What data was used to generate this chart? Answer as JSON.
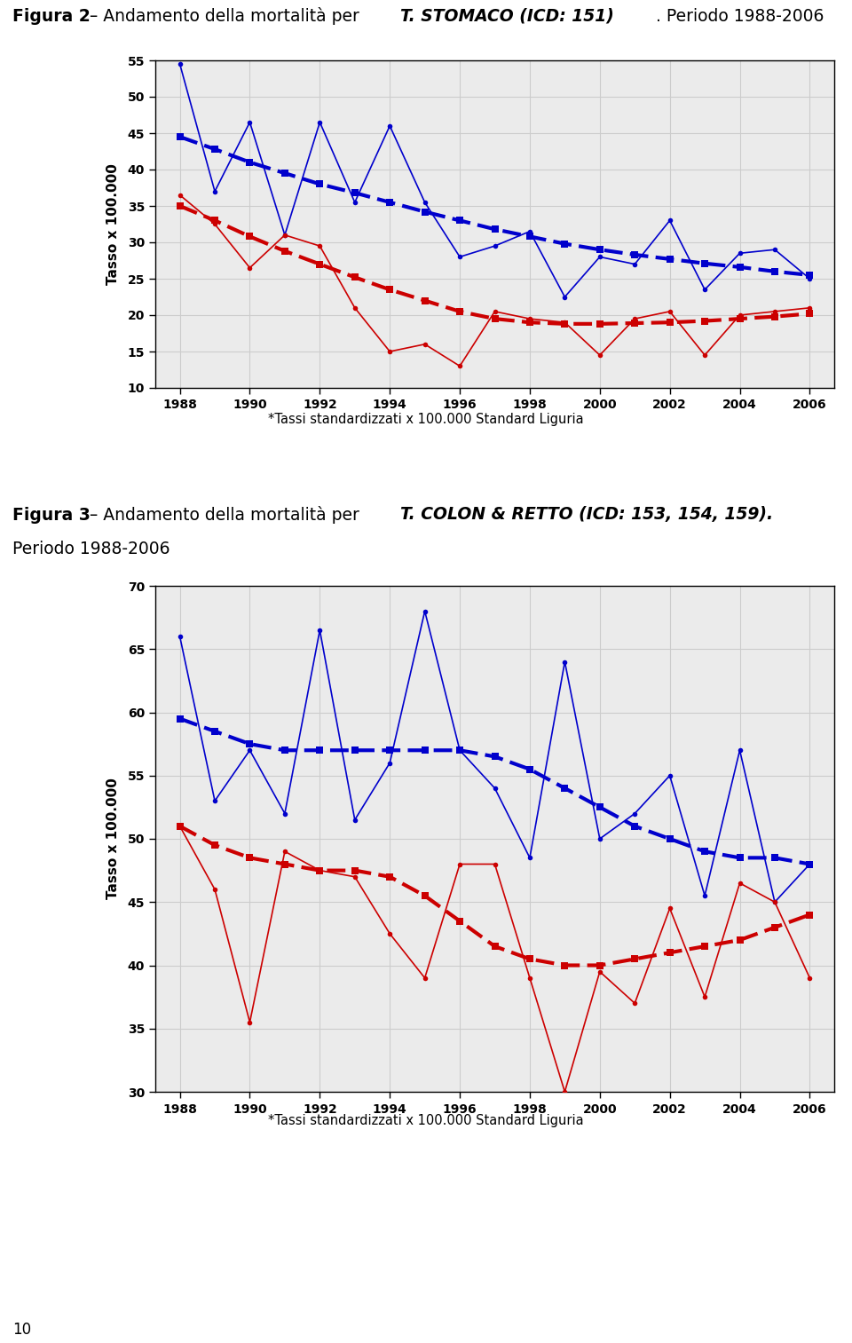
{
  "footnote": "*Tassi standardizzati x 100.000 Standard Liguria",
  "years": [
    1988,
    1989,
    1990,
    1991,
    1992,
    1993,
    1994,
    1995,
    1996,
    1997,
    1998,
    1999,
    2000,
    2001,
    2002,
    2003,
    2004,
    2005,
    2006
  ],
  "stomaco_blue_raw": [
    54.5,
    37.0,
    46.5,
    31.0,
    46.5,
    35.5,
    46.0,
    35.5,
    28.0,
    29.5,
    31.5,
    22.5,
    28.0,
    27.0,
    33.0,
    23.5,
    28.5,
    29.0,
    25.0
  ],
  "stomaco_red_raw": [
    36.5,
    32.5,
    26.5,
    31.0,
    29.5,
    21.0,
    15.0,
    16.0,
    13.0,
    20.5,
    19.5,
    19.0,
    14.5,
    19.5,
    20.5,
    14.5,
    20.0,
    20.5,
    21.0
  ],
  "stomaco_blue_trend": [
    44.5,
    42.8,
    41.0,
    39.5,
    38.0,
    36.8,
    35.5,
    34.2,
    33.0,
    31.8,
    30.8,
    29.8,
    29.0,
    28.3,
    27.7,
    27.1,
    26.6,
    26.0,
    25.5
  ],
  "stomaco_red_trend": [
    35.0,
    33.0,
    30.8,
    28.8,
    27.0,
    25.2,
    23.5,
    22.0,
    20.5,
    19.5,
    19.0,
    18.8,
    18.8,
    18.9,
    19.0,
    19.2,
    19.5,
    19.8,
    20.2
  ],
  "stomaco_ylim": [
    10,
    55
  ],
  "stomaco_yticks": [
    10,
    15,
    20,
    25,
    30,
    35,
    40,
    45,
    50,
    55
  ],
  "colon_blue_raw": [
    66.0,
    53.0,
    57.0,
    52.0,
    66.5,
    51.5,
    56.0,
    68.0,
    57.0,
    54.0,
    48.5,
    64.0,
    50.0,
    52.0,
    55.0,
    45.5,
    57.0,
    45.0,
    48.0
  ],
  "colon_red_raw": [
    51.0,
    46.0,
    35.5,
    49.0,
    47.5,
    47.0,
    42.5,
    39.0,
    48.0,
    48.0,
    39.0,
    30.0,
    39.5,
    37.0,
    44.5,
    37.5,
    46.5,
    45.0,
    39.0
  ],
  "colon_blue_trend": [
    59.5,
    58.5,
    57.5,
    57.0,
    57.0,
    57.0,
    57.0,
    57.0,
    57.0,
    56.5,
    55.5,
    54.0,
    52.5,
    51.0,
    50.0,
    49.0,
    48.5,
    48.5,
    48.0
  ],
  "colon_red_trend": [
    51.0,
    49.5,
    48.5,
    48.0,
    47.5,
    47.5,
    47.0,
    45.5,
    43.5,
    41.5,
    40.5,
    40.0,
    40.0,
    40.5,
    41.0,
    41.5,
    42.0,
    43.0,
    44.0
  ],
  "colon_ylim": [
    30,
    70
  ],
  "colon_yticks": [
    30,
    35,
    40,
    45,
    50,
    55,
    60,
    65,
    70
  ],
  "blue_color": "#0000cc",
  "red_color": "#cc0000",
  "grid_color": "#cccccc",
  "bg_color": "#ffffff",
  "plot_bg_color": "#ebebeb",
  "ylabel": "Tasso x 100.000",
  "xtick_years": [
    1988,
    1990,
    1992,
    1994,
    1996,
    1998,
    2000,
    2002,
    2004,
    2006
  ],
  "page_num": "10"
}
